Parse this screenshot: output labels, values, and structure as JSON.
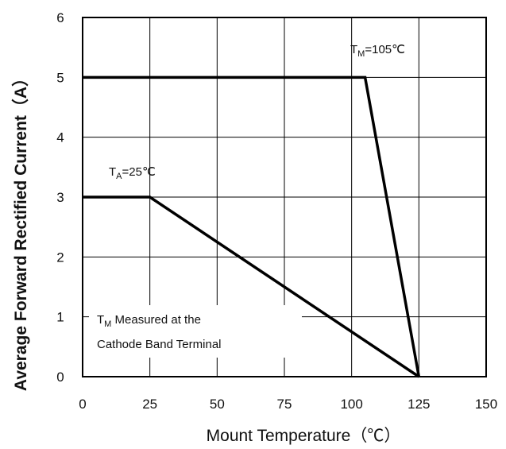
{
  "chart_data": {
    "type": "line",
    "xlabel": "Mount Temperature（℃）",
    "ylabel": "Average Forward Rectified Current（A）",
    "xlim": [
      0,
      150
    ],
    "ylim": [
      0,
      6
    ],
    "x_ticks": [
      "0",
      "25",
      "50",
      "75",
      "100",
      "125",
      "150"
    ],
    "y_ticks": [
      "0",
      "1",
      "2",
      "3",
      "4",
      "5",
      "6"
    ],
    "grid": true,
    "series": [
      {
        "points": [
          [
            0,
            5
          ],
          [
            105,
            5
          ],
          [
            125,
            0
          ]
        ]
      },
      {
        "points": [
          [
            0,
            3
          ],
          [
            25,
            3
          ],
          [
            125,
            0
          ]
        ]
      }
    ],
    "annotations": {
      "tm_label": {
        "main": "T",
        "sub": "M",
        "rest": "=105℃"
      },
      "ta_label": {
        "main": "T",
        "sub": "A",
        "rest": "=25℃"
      },
      "note_line1_main": "T",
      "note_line1_sub": "M",
      "note_line1_rest": " Measured at the",
      "note_line2": "Cathode Band Terminal"
    }
  }
}
